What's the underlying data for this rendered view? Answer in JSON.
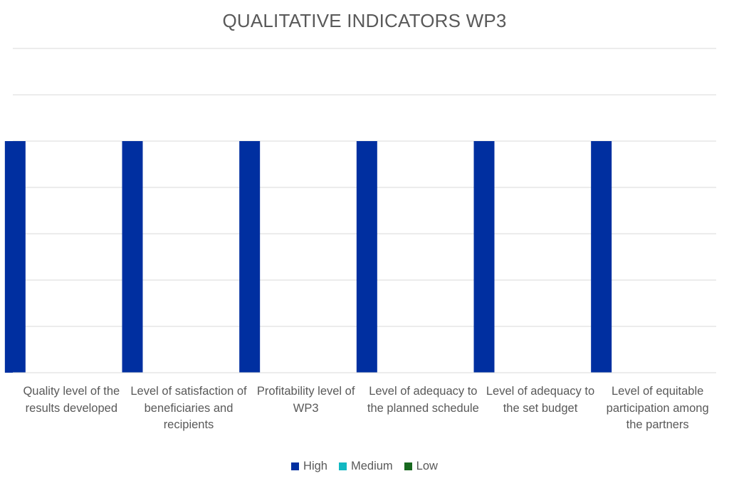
{
  "chart_data": {
    "type": "bar",
    "title": "QUALITATIVE INDICATORS WP3",
    "xlabel": "",
    "ylabel": "",
    "ylim": [
      0,
      7
    ],
    "grid": true,
    "legend_position": "bottom",
    "categories": [
      "Quality level of the results developed",
      "Level of satisfaction of beneficiaries and recipients",
      "Profitability level of WP3",
      "Level of adequacy to the planned schedule",
      "Level of adequacy to the set budget",
      "Level of equitable participation among the partners"
    ],
    "series": [
      {
        "name": "High",
        "color": "#002FA0",
        "values": [
          5,
          5,
          5,
          5,
          5,
          5
        ]
      },
      {
        "name": "Medium",
        "color": "#12B8C2",
        "values": [
          0,
          0,
          0,
          0,
          0,
          0
        ]
      },
      {
        "name": "Low",
        "color": "#18691F",
        "values": [
          0,
          0,
          0,
          0,
          0,
          0
        ]
      }
    ]
  }
}
